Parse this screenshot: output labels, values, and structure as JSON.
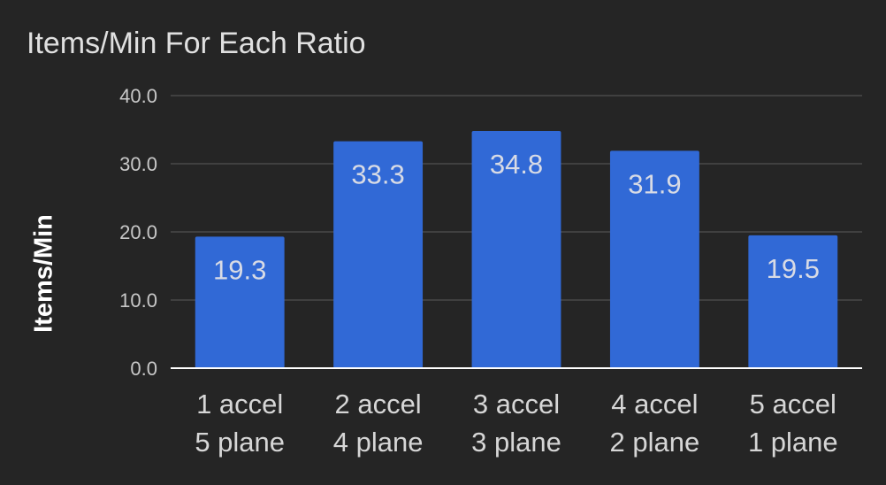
{
  "chart_data": {
    "type": "bar",
    "title": "Items/Min For Each Ratio",
    "ylabel": "Items/Min",
    "xlabel": "",
    "categories": [
      [
        "1 accel",
        "5 plane"
      ],
      [
        "2 accel",
        "4 plane"
      ],
      [
        "3 accel",
        "3 plane"
      ],
      [
        "4 accel",
        "2 plane"
      ],
      [
        "5 accel",
        "1 plane"
      ]
    ],
    "values": [
      19.3,
      33.3,
      34.8,
      31.9,
      19.5
    ],
    "data_labels": [
      "19.3",
      "33.3",
      "34.8",
      "31.9",
      "19.5"
    ],
    "ylim": [
      0,
      40
    ],
    "y_ticks": [
      "0.0",
      "10.0",
      "20.0",
      "30.0",
      "40.0"
    ],
    "grid": true,
    "legend": "none",
    "colors": {
      "background": "#252525",
      "bar": "#3169d6",
      "grid": "#4a4a4a",
      "axis": "#ffffff",
      "title": "#e0e0e0"
    }
  }
}
